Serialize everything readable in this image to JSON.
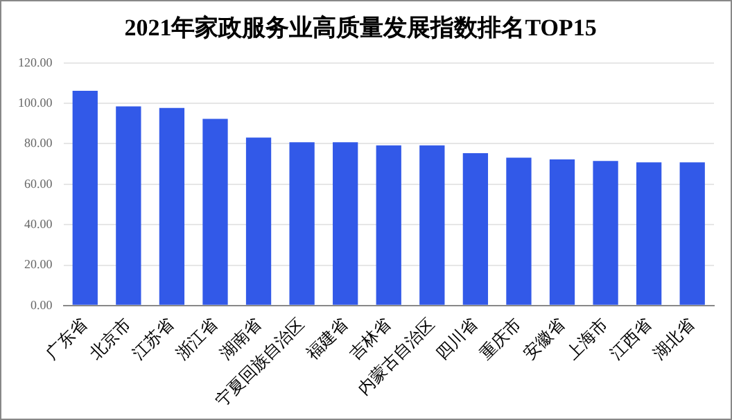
{
  "chart_data": {
    "type": "bar",
    "title": "2021年家政服务业高质量发展指数排名TOP15",
    "categories": [
      "广东省",
      "北京市",
      "江苏省",
      "浙江省",
      "湖南省",
      "宁夏回族自治区",
      "福建省",
      "吉林省",
      "内蒙古自治区",
      "四川省",
      "重庆市",
      "安徽省",
      "上海市",
      "江西省",
      "湖北省"
    ],
    "values": [
      106.2,
      98.5,
      97.7,
      92.3,
      83.1,
      80.8,
      80.8,
      79.2,
      79.2,
      75.4,
      73.1,
      72.3,
      71.5,
      70.8,
      70.8
    ],
    "color": "#3259e8",
    "ylim": [
      0,
      120
    ],
    "yticks": [
      {
        "value": 0,
        "label": "0.00"
      },
      {
        "value": 20,
        "label": "20.00"
      },
      {
        "value": 40,
        "label": "40.00"
      },
      {
        "value": 60,
        "label": "60.00"
      },
      {
        "value": 80,
        "label": "80.00"
      },
      {
        "value": 100,
        "label": "100.00"
      },
      {
        "value": 120,
        "label": "120.00"
      }
    ],
    "grid": "y",
    "legend": false
  }
}
